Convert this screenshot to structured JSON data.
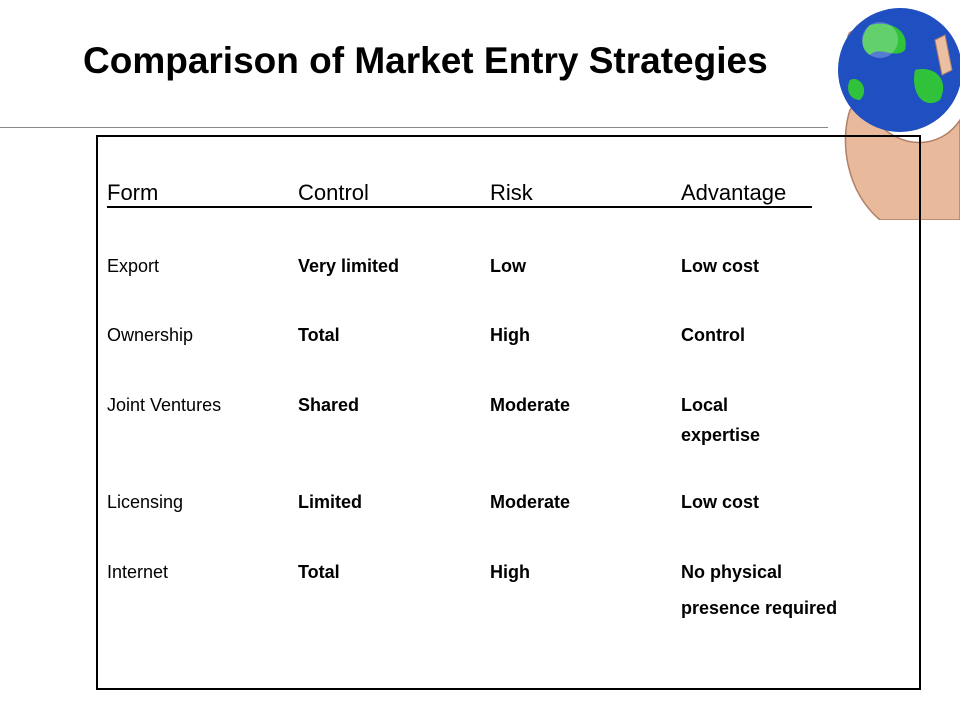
{
  "header": {
    "title": "Comparison of Market Entry Strategies"
  },
  "table": {
    "columns": [
      "Form",
      "Control",
      "Risk",
      "Advantage"
    ],
    "rows": [
      [
        "Export",
        "Very limited",
        "Low",
        [
          "Low cost"
        ]
      ],
      [
        "Ownership",
        "Total",
        "High",
        [
          "Control"
        ]
      ],
      [
        "Joint Ventures",
        "Shared",
        "Moderate",
        [
          "Local",
          "expertise"
        ]
      ],
      [
        "Licensing",
        "Limited",
        "Moderate",
        [
          "Low cost"
        ]
      ],
      [
        "Internet",
        "Total",
        "High",
        [
          "No physical",
          "presence required"
        ]
      ]
    ]
  }
}
